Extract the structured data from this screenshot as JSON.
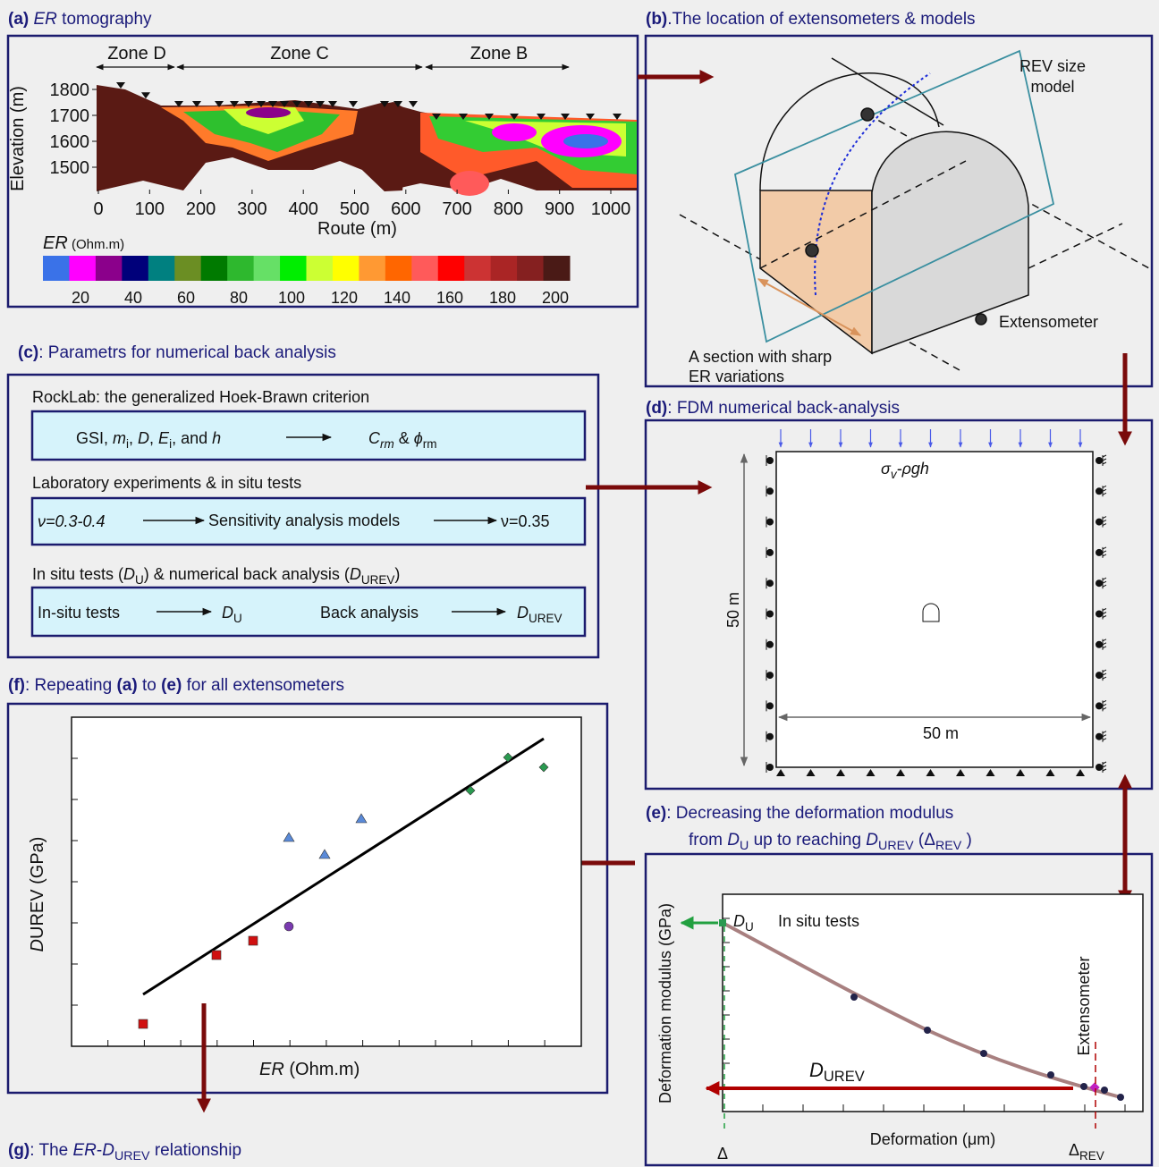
{
  "panels": {
    "a": {
      "title": [
        {
          "text": "(a) ",
          "style": "bold"
        },
        {
          "text": "ER",
          "style": "italic"
        },
        {
          "text": " tomography"
        }
      ],
      "zones": [
        "Zone D",
        "Zone C",
        "Zone B"
      ],
      "y_label": "Elevation (m)",
      "yticks": [
        1800,
        1700,
        1600,
        1500
      ],
      "x_label": "Route (m)",
      "xticks": [
        0,
        100,
        200,
        300,
        400,
        500,
        600,
        700,
        800,
        900,
        1000
      ],
      "legend_title": [
        {
          "text": "ER",
          "style": "italic"
        },
        {
          "text": " (Ohm.m)",
          "style": "small"
        }
      ],
      "colorbar_colors": [
        "#3a72e8",
        "#ff00ff",
        "#8b008b",
        "#00007a",
        "#008080",
        "#6b8e23",
        "#007a00",
        "#2eb82e",
        "#66e066",
        "#00ee00",
        "#ccff33",
        "#ffff00",
        "#ff9933",
        "#ff6600",
        "#ff5a5a",
        "#ff0000",
        "#cc3333",
        "#aa2525",
        "#852020",
        "#4a1a16"
      ],
      "legend_labels": [
        20,
        40,
        60,
        80,
        100,
        120,
        140,
        160,
        180,
        200
      ],
      "label_colors": [
        "#ee00ee",
        "#1a1a80",
        "#6b7a10",
        "#22aa22",
        "#22bb22",
        "#333300",
        "#ff8800",
        "#ee0000",
        "#993333",
        "#5a1a1a"
      ]
    },
    "b": {
      "title": [
        {
          "text": "(b)",
          "style": "bold"
        },
        {
          "text": ".The location of extensometers &  models"
        }
      ],
      "rev_label": [
        "REV size",
        "model"
      ],
      "legend": "Extensometer",
      "section_label": [
        "A section with sharp",
        "ER variations"
      ]
    },
    "c": {
      "title": [
        {
          "text": "(c)",
          "style": "bold"
        },
        {
          "text": ": Parametrs for numerical back analysis"
        }
      ],
      "box1": {
        "heading": "RockLab: the generalized Hoek-Brawn criterion",
        "inputs": [
          {
            "text": "GSI, "
          },
          {
            "text": "m",
            "style": "italic"
          },
          {
            "text": "i",
            "style": "sub"
          },
          {
            "text": ", "
          },
          {
            "text": "D",
            "style": "italic"
          },
          {
            "text": ", "
          },
          {
            "text": "E",
            "style": "italic"
          },
          {
            "text": "i",
            "style": "sub"
          },
          {
            "text": ", and "
          },
          {
            "text": "h",
            "style": "italic"
          }
        ],
        "outputs": [
          {
            "text": "C",
            "style": "italic"
          },
          {
            "text": "rm",
            "style": "italic-sub"
          },
          {
            "text": " & "
          },
          {
            "text": "ϕ",
            "style": "italic"
          },
          {
            "text": "rm",
            "style": "sub"
          }
        ]
      },
      "box2": {
        "heading": "Laboratory experiments & in situ tests",
        "input": "ν=0.3-0.4",
        "step": "Sensitivity analysis models",
        "output": "ν=0.35"
      },
      "box3": {
        "heading": [
          {
            "text": "In situ tests ("
          },
          {
            "text": "D",
            "style": "italic"
          },
          {
            "text": "U",
            "style": "sub"
          },
          {
            "text": ") & numerical back analysis ("
          },
          {
            "text": "D",
            "style": "italic"
          },
          {
            "text": "UREV",
            "style": "sub"
          },
          {
            "text": ")"
          }
        ],
        "step1": "In-situ tests",
        "out1": [
          {
            "text": "D",
            "style": "italic"
          },
          {
            "text": "U",
            "style": "sub"
          }
        ],
        "step2": "Back analysis",
        "out2": [
          {
            "text": "D",
            "style": "italic"
          },
          {
            "text": "UREV",
            "style": "sub"
          }
        ]
      }
    },
    "d": {
      "title": [
        {
          "text": "(d)",
          "style": "bold"
        },
        {
          "text": ": FDM numerical back-analysis"
        }
      ],
      "load": [
        {
          "text": "σ",
          "style": "italic"
        },
        {
          "text": "v",
          "style": "italic-sub"
        },
        {
          "text": "-ρgh",
          "style": "italic"
        }
      ],
      "height": "50 m",
      "width": "50 m"
    },
    "e": {
      "title_1": [
        {
          "text": "(e)",
          "style": "bold"
        },
        {
          "text": ": Decreasing the deformation modulus"
        }
      ],
      "title_2": [
        {
          "text": "from "
        },
        {
          "text": "D",
          "style": "italic"
        },
        {
          "text": "U",
          "style": "sub"
        },
        {
          "text": " up to reaching "
        },
        {
          "text": "D",
          "style": "italic"
        },
        {
          "text": "UREV",
          "style": "sub"
        },
        {
          "text": " ("
        },
        {
          "text": "Δ"
        },
        {
          "text": "REV",
          "style": "sub"
        },
        {
          "text": " )"
        }
      ],
      "y_label": "Deformation modulus (GPa)",
      "x_label": "Deformation (μm)",
      "du": [
        {
          "text": "D",
          "style": "italic"
        },
        {
          "text": "U",
          "style": "sub"
        }
      ],
      "in_situ": "In situ tests",
      "extensometer": "Extensometer",
      "durev": [
        {
          "text": "D",
          "style": "italic"
        },
        {
          "text": "UREV",
          "style": "sub"
        }
      ],
      "delta": "Δ",
      "delta_rev": [
        {
          "text": "Δ"
        },
        {
          "text": "REV",
          "style": "sub"
        }
      ]
    },
    "f": {
      "title": [
        {
          "text": "(f)",
          "style": "bold"
        },
        {
          "text": ": Repeating "
        },
        {
          "text": "(a)",
          "style": "bold"
        },
        {
          "text": " to "
        },
        {
          "text": "(e)",
          "style": "bold"
        },
        {
          "text": " for all extensometers"
        }
      ],
      "y_label": [
        {
          "text": "D",
          "style": "italic"
        },
        {
          "text": "UREV (GPa)"
        }
      ],
      "x_label": [
        {
          "text": "ER",
          "style": "italic"
        },
        {
          "text": " (Ohm.m)"
        }
      ]
    },
    "g": {
      "title": [
        {
          "text": "(g)",
          "style": "bold"
        },
        {
          "text": ": The "
        },
        {
          "text": "ER",
          "style": "italic"
        },
        {
          "text": "-"
        },
        {
          "text": "D",
          "style": "italic"
        },
        {
          "text": "UREV",
          "style": "sub"
        },
        {
          "text": " relationship"
        }
      ]
    }
  }
}
